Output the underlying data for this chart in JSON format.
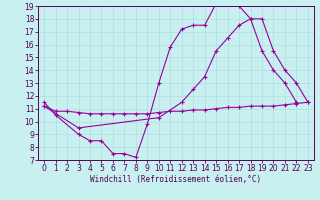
{
  "bg_color": "#c8f0f0",
  "line_color": "#990099",
  "grid_color": "#b0dede",
  "xlabel": "Windchill (Refroidissement éolien,°C)",
  "xlim": [
    -0.5,
    23.5
  ],
  "ylim": [
    7,
    19
  ],
  "xticks": [
    0,
    1,
    2,
    3,
    4,
    5,
    6,
    7,
    8,
    9,
    10,
    11,
    12,
    13,
    14,
    15,
    16,
    17,
    18,
    19,
    20,
    21,
    22,
    23
  ],
  "yticks": [
    7,
    8,
    9,
    10,
    11,
    12,
    13,
    14,
    15,
    16,
    17,
    18,
    19
  ],
  "curve1_x": [
    0,
    1,
    3,
    4,
    5,
    6,
    7,
    8,
    9,
    10,
    11,
    12,
    13,
    14,
    15,
    16,
    17,
    18,
    19,
    20,
    21,
    22
  ],
  "curve1_y": [
    11.5,
    10.5,
    9.0,
    8.5,
    8.5,
    7.5,
    7.5,
    7.2,
    9.8,
    13.0,
    15.8,
    17.2,
    17.5,
    17.5,
    19.2,
    19.2,
    19.0,
    18.0,
    15.5,
    14.0,
    13.0,
    11.5
  ],
  "curve2_x": [
    0,
    3,
    10,
    12,
    13,
    14,
    15,
    16,
    17,
    18,
    19,
    20,
    21,
    22,
    23
  ],
  "curve2_y": [
    11.2,
    9.5,
    10.3,
    11.5,
    12.5,
    13.5,
    15.5,
    16.5,
    17.5,
    18.0,
    18.0,
    15.5,
    14.0,
    13.0,
    11.5
  ],
  "curve3_x": [
    0,
    1,
    2,
    3,
    4,
    5,
    6,
    7,
    8,
    9,
    10,
    11,
    12,
    13,
    14,
    15,
    16,
    17,
    18,
    19,
    20,
    21,
    22,
    23
  ],
  "curve3_y": [
    11.2,
    10.8,
    10.8,
    10.7,
    10.6,
    10.6,
    10.6,
    10.6,
    10.6,
    10.6,
    10.7,
    10.8,
    10.8,
    10.9,
    10.9,
    11.0,
    11.1,
    11.1,
    11.2,
    11.2,
    11.2,
    11.3,
    11.4,
    11.5
  ],
  "xlabel_fontsize": 5.5,
  "tick_fontsize": 5.5,
  "lw": 0.8,
  "ms": 3.0
}
